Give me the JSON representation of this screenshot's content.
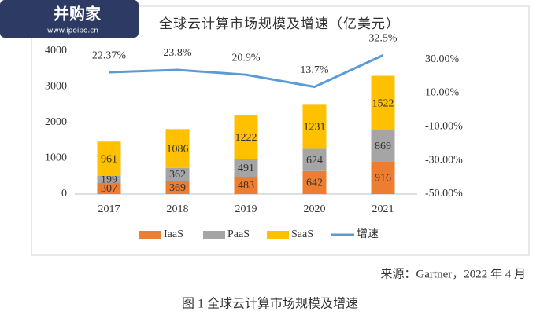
{
  "logo": {
    "name": "并购家",
    "url": "www.ipoipo.cn"
  },
  "chart_data": {
    "type": "bar",
    "stacked": true,
    "title": "全球云计算市场规模及增速（亿美元）",
    "categories": [
      "2017",
      "2018",
      "2019",
      "2020",
      "2021"
    ],
    "series": [
      {
        "name": "IaaS",
        "color": "#ed7d31",
        "values": [
          307,
          369,
          483,
          642,
          916
        ]
      },
      {
        "name": "PaaS",
        "color": "#a5a5a5",
        "values": [
          199,
          362,
          491,
          624,
          869
        ]
      },
      {
        "name": "SaaS",
        "color": "#ffc000",
        "values": [
          961,
          1086,
          1222,
          1231,
          1522
        ]
      },
      {
        "name": "增速",
        "type": "line",
        "axis": "y2",
        "color": "#5b9bd5",
        "values": [
          22.37,
          23.8,
          20.9,
          13.7,
          32.5
        ],
        "value_labels": [
          "22.37%",
          "23.8%",
          "20.9%",
          "13.7%",
          "32.5%"
        ]
      }
    ],
    "ylim": [
      0,
      4000
    ],
    "yticks": [
      0,
      1000,
      2000,
      3000,
      4000
    ],
    "y2lim": [
      -50,
      35
    ],
    "y2ticks": [
      {
        "value": -50,
        "label": "-50.00%"
      },
      {
        "value": -30,
        "label": "-30.00%"
      },
      {
        "value": -10,
        "label": "-10.00%"
      },
      {
        "value": 10,
        "label": "10.00%"
      },
      {
        "value": 30,
        "label": "30.00%"
      }
    ],
    "legend": "bottom",
    "grid": false
  },
  "source": "来源：Gartner，2022 年 4 月",
  "caption": "图 1 全球云计算市场规模及增速"
}
